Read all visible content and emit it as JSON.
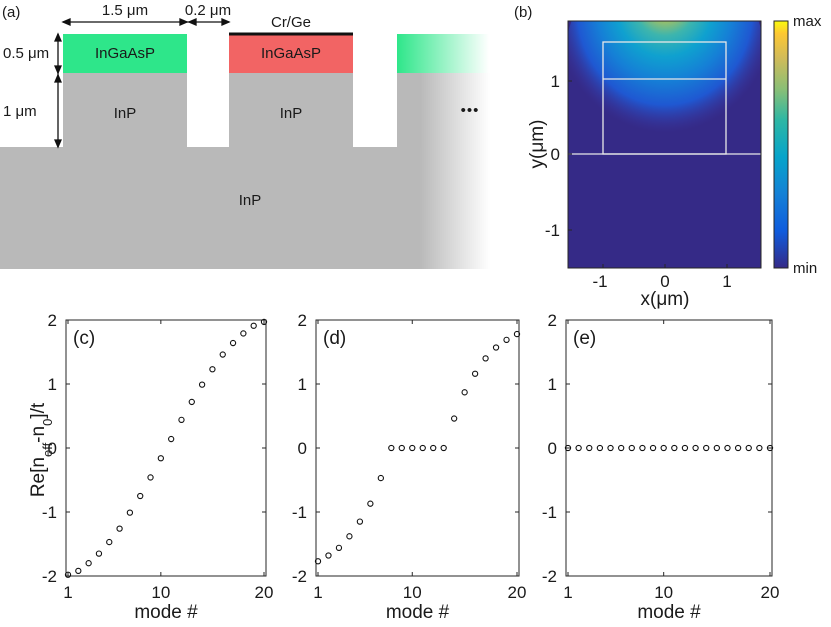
{
  "panel_a": {
    "label": "(a)",
    "width_label": "1.5 μm",
    "gap_label": "0.2 μm",
    "contact_label": "Cr/Ge",
    "h1_label": "0.5 μm",
    "h2_label": "1 μm",
    "cap_left": "InGaAsP",
    "cap_mid": "InGaAsP",
    "ridge_left": "InP",
    "ridge_mid": "InP",
    "substrate": "InP",
    "ellipsis": "•••",
    "colors": {
      "gain": "#2ee68a",
      "loss": "#f26464",
      "inp": "#b9b9b9",
      "contact": "#111111"
    }
  },
  "panel_b": {
    "label": "(b)",
    "xlabel": "x(μm)",
    "ylabel": "y(μm)",
    "xticks": [
      "-1",
      "0",
      "1"
    ],
    "yticks": [
      "1",
      "0",
      "-1"
    ],
    "colorbar_max": "max",
    "colorbar_min": "min",
    "colormap": "parula"
  },
  "shared": {
    "ylabel_main": "Re[n",
    "ylabel_sub1": "eff",
    "ylabel_mid": "-n",
    "ylabel_sub2": "0",
    "ylabel_end": "]/t",
    "xlabel": "mode #",
    "yticks": [
      "2",
      "1",
      "0",
      "-1",
      "-2"
    ],
    "xticks": [
      "1",
      "10",
      "20"
    ]
  },
  "chart_data": [
    {
      "type": "scatter",
      "panel": "(c)",
      "xlabel": "mode #",
      "ylabel": "Re[n_eff-n_0]/t",
      "xlim": [
        1,
        20
      ],
      "ylim": [
        -2,
        2
      ],
      "x": [
        1,
        2,
        3,
        4,
        5,
        6,
        7,
        8,
        9,
        10,
        11,
        12,
        13,
        14,
        15,
        16,
        17,
        18,
        19,
        20
      ],
      "y": [
        -1.98,
        -1.92,
        -1.8,
        -1.65,
        -1.47,
        -1.26,
        -1.01,
        -0.75,
        -0.46,
        -0.16,
        0.14,
        0.44,
        0.72,
        0.99,
        1.23,
        1.46,
        1.64,
        1.79,
        1.91,
        1.97
      ]
    },
    {
      "type": "scatter",
      "panel": "(d)",
      "xlabel": "mode #",
      "ylabel": "Re[n_eff-n_0]/t",
      "xlim": [
        1,
        20
      ],
      "ylim": [
        -2,
        2
      ],
      "x": [
        1,
        2,
        3,
        4,
        5,
        6,
        7,
        8,
        9,
        10,
        11,
        12,
        13,
        14,
        15,
        16,
        17,
        18,
        19,
        20
      ],
      "y": [
        -1.77,
        -1.68,
        -1.56,
        -1.38,
        -1.15,
        -0.87,
        -0.47,
        0,
        0,
        0,
        0,
        0,
        0,
        0.46,
        0.87,
        1.16,
        1.4,
        1.57,
        1.69,
        1.78
      ]
    },
    {
      "type": "scatter",
      "panel": "(e)",
      "xlabel": "mode #",
      "ylabel": "Re[n_eff-n_0]/t",
      "xlim": [
        1,
        20
      ],
      "ylim": [
        -2,
        2
      ],
      "x": [
        1,
        2,
        3,
        4,
        5,
        6,
        7,
        8,
        9,
        10,
        11,
        12,
        13,
        14,
        15,
        16,
        17,
        18,
        19,
        20
      ],
      "y": [
        0,
        0,
        0,
        0,
        0,
        0,
        0,
        0,
        0,
        0,
        0,
        0,
        0,
        0,
        0,
        0,
        0,
        0,
        0,
        0
      ]
    }
  ]
}
